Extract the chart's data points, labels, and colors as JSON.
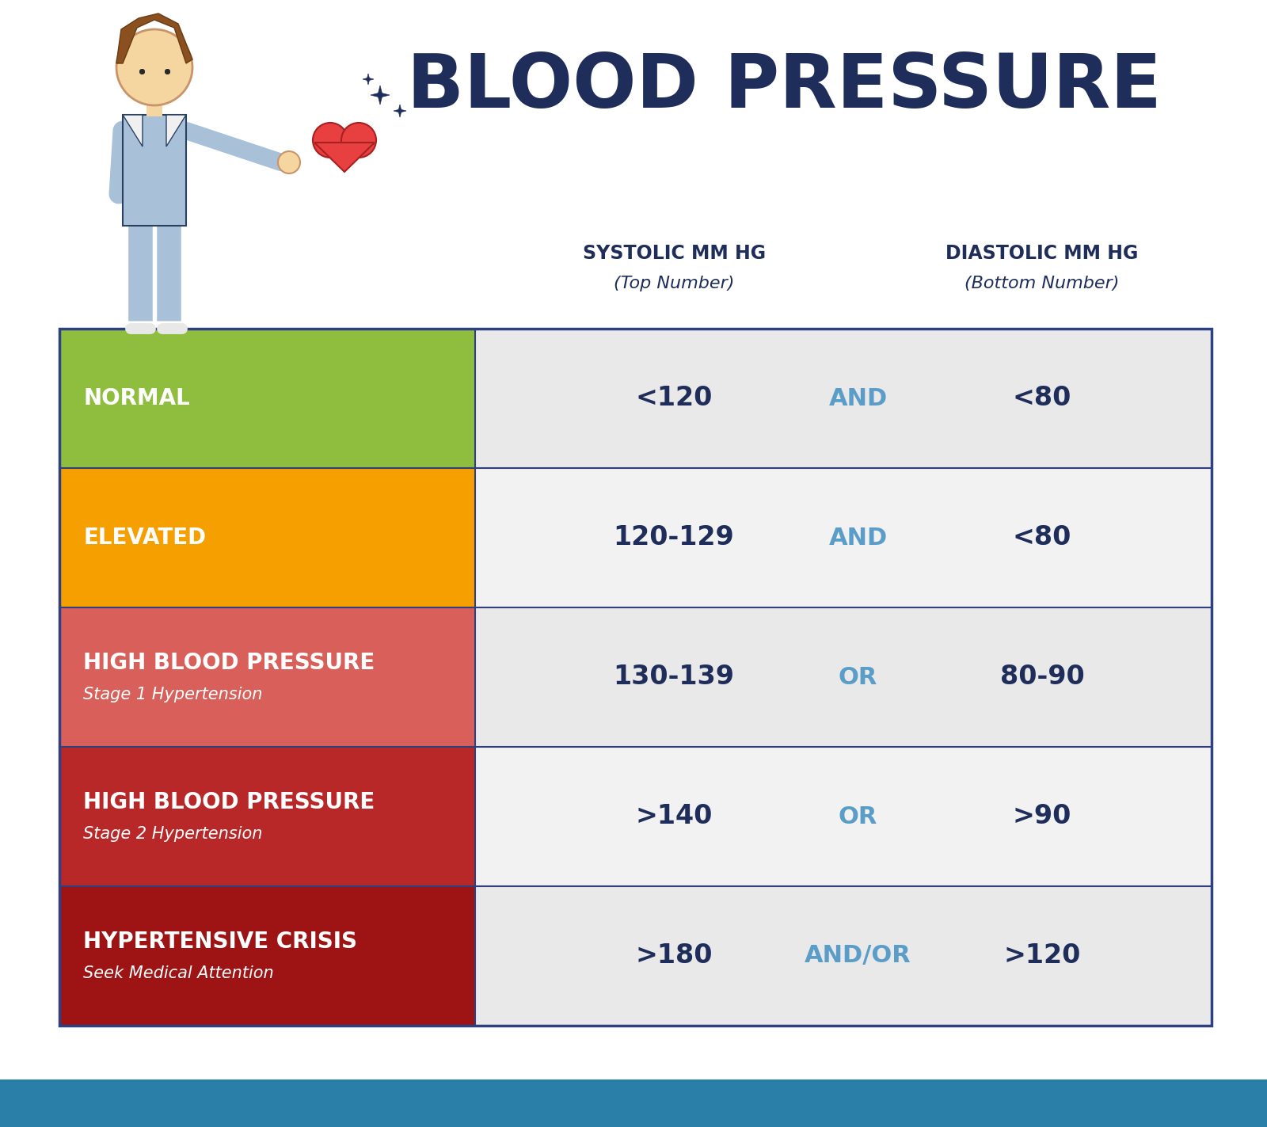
{
  "title": "BLOOD PRESSURE",
  "title_color": "#1e2d5a",
  "title_fontsize": 68,
  "background_color": "#ffffff",
  "col1_header1": "SYSTOLIC MM HG",
  "col1_header2": "(Top Number)",
  "col2_header1": "DIASTOLIC MM HG",
  "col2_header2": "(Bottom Number)",
  "header_color": "#1e2d5a",
  "rows": [
    {
      "label": "NORMAL",
      "sublabel": "",
      "bg_color": "#8fbe3f",
      "text_color": "#ffffff",
      "systolic": "<120",
      "connector": "AND",
      "diastolic": "<80",
      "row_bg": "#e9e9e9"
    },
    {
      "label": "ELEVATED",
      "sublabel": "",
      "bg_color": "#f5a000",
      "text_color": "#ffffff",
      "systolic": "120-129",
      "connector": "AND",
      "diastolic": "<80",
      "row_bg": "#f2f2f2"
    },
    {
      "label": "HIGH BLOOD PRESSURE",
      "sublabel": "Stage 1 Hypertension",
      "bg_color": "#d9605a",
      "text_color": "#ffffff",
      "systolic": "130-139",
      "connector": "OR",
      "diastolic": "80-90",
      "row_bg": "#e9e9e9"
    },
    {
      "label": "HIGH BLOOD PRESSURE",
      "sublabel": "Stage 2 Hypertension",
      "bg_color": "#b82828",
      "text_color": "#ffffff",
      "systolic": ">140",
      "connector": "OR",
      "diastolic": ">90",
      "row_bg": "#f2f2f2"
    },
    {
      "label": "HYPERTENSIVE CRISIS",
      "sublabel": "Seek Medical Attention",
      "bg_color": "#9e1414",
      "text_color": "#ffffff",
      "systolic": ">180",
      "connector": "AND/OR",
      "diastolic": ">120",
      "row_bg": "#e9e9e9"
    }
  ],
  "connector_color": "#5b9dc9",
  "data_color": "#1e2d5a",
  "border_color": "#2e4080",
  "footer_bg": "#2a7fa8",
  "footer_text_color": "#ffffff",
  "label_fontsize": 20,
  "sublabel_fontsize": 15,
  "data_fontsize": 24,
  "connector_fontsize": 22,
  "header_fontsize_main": 17,
  "header_fontsize_sub": 16
}
